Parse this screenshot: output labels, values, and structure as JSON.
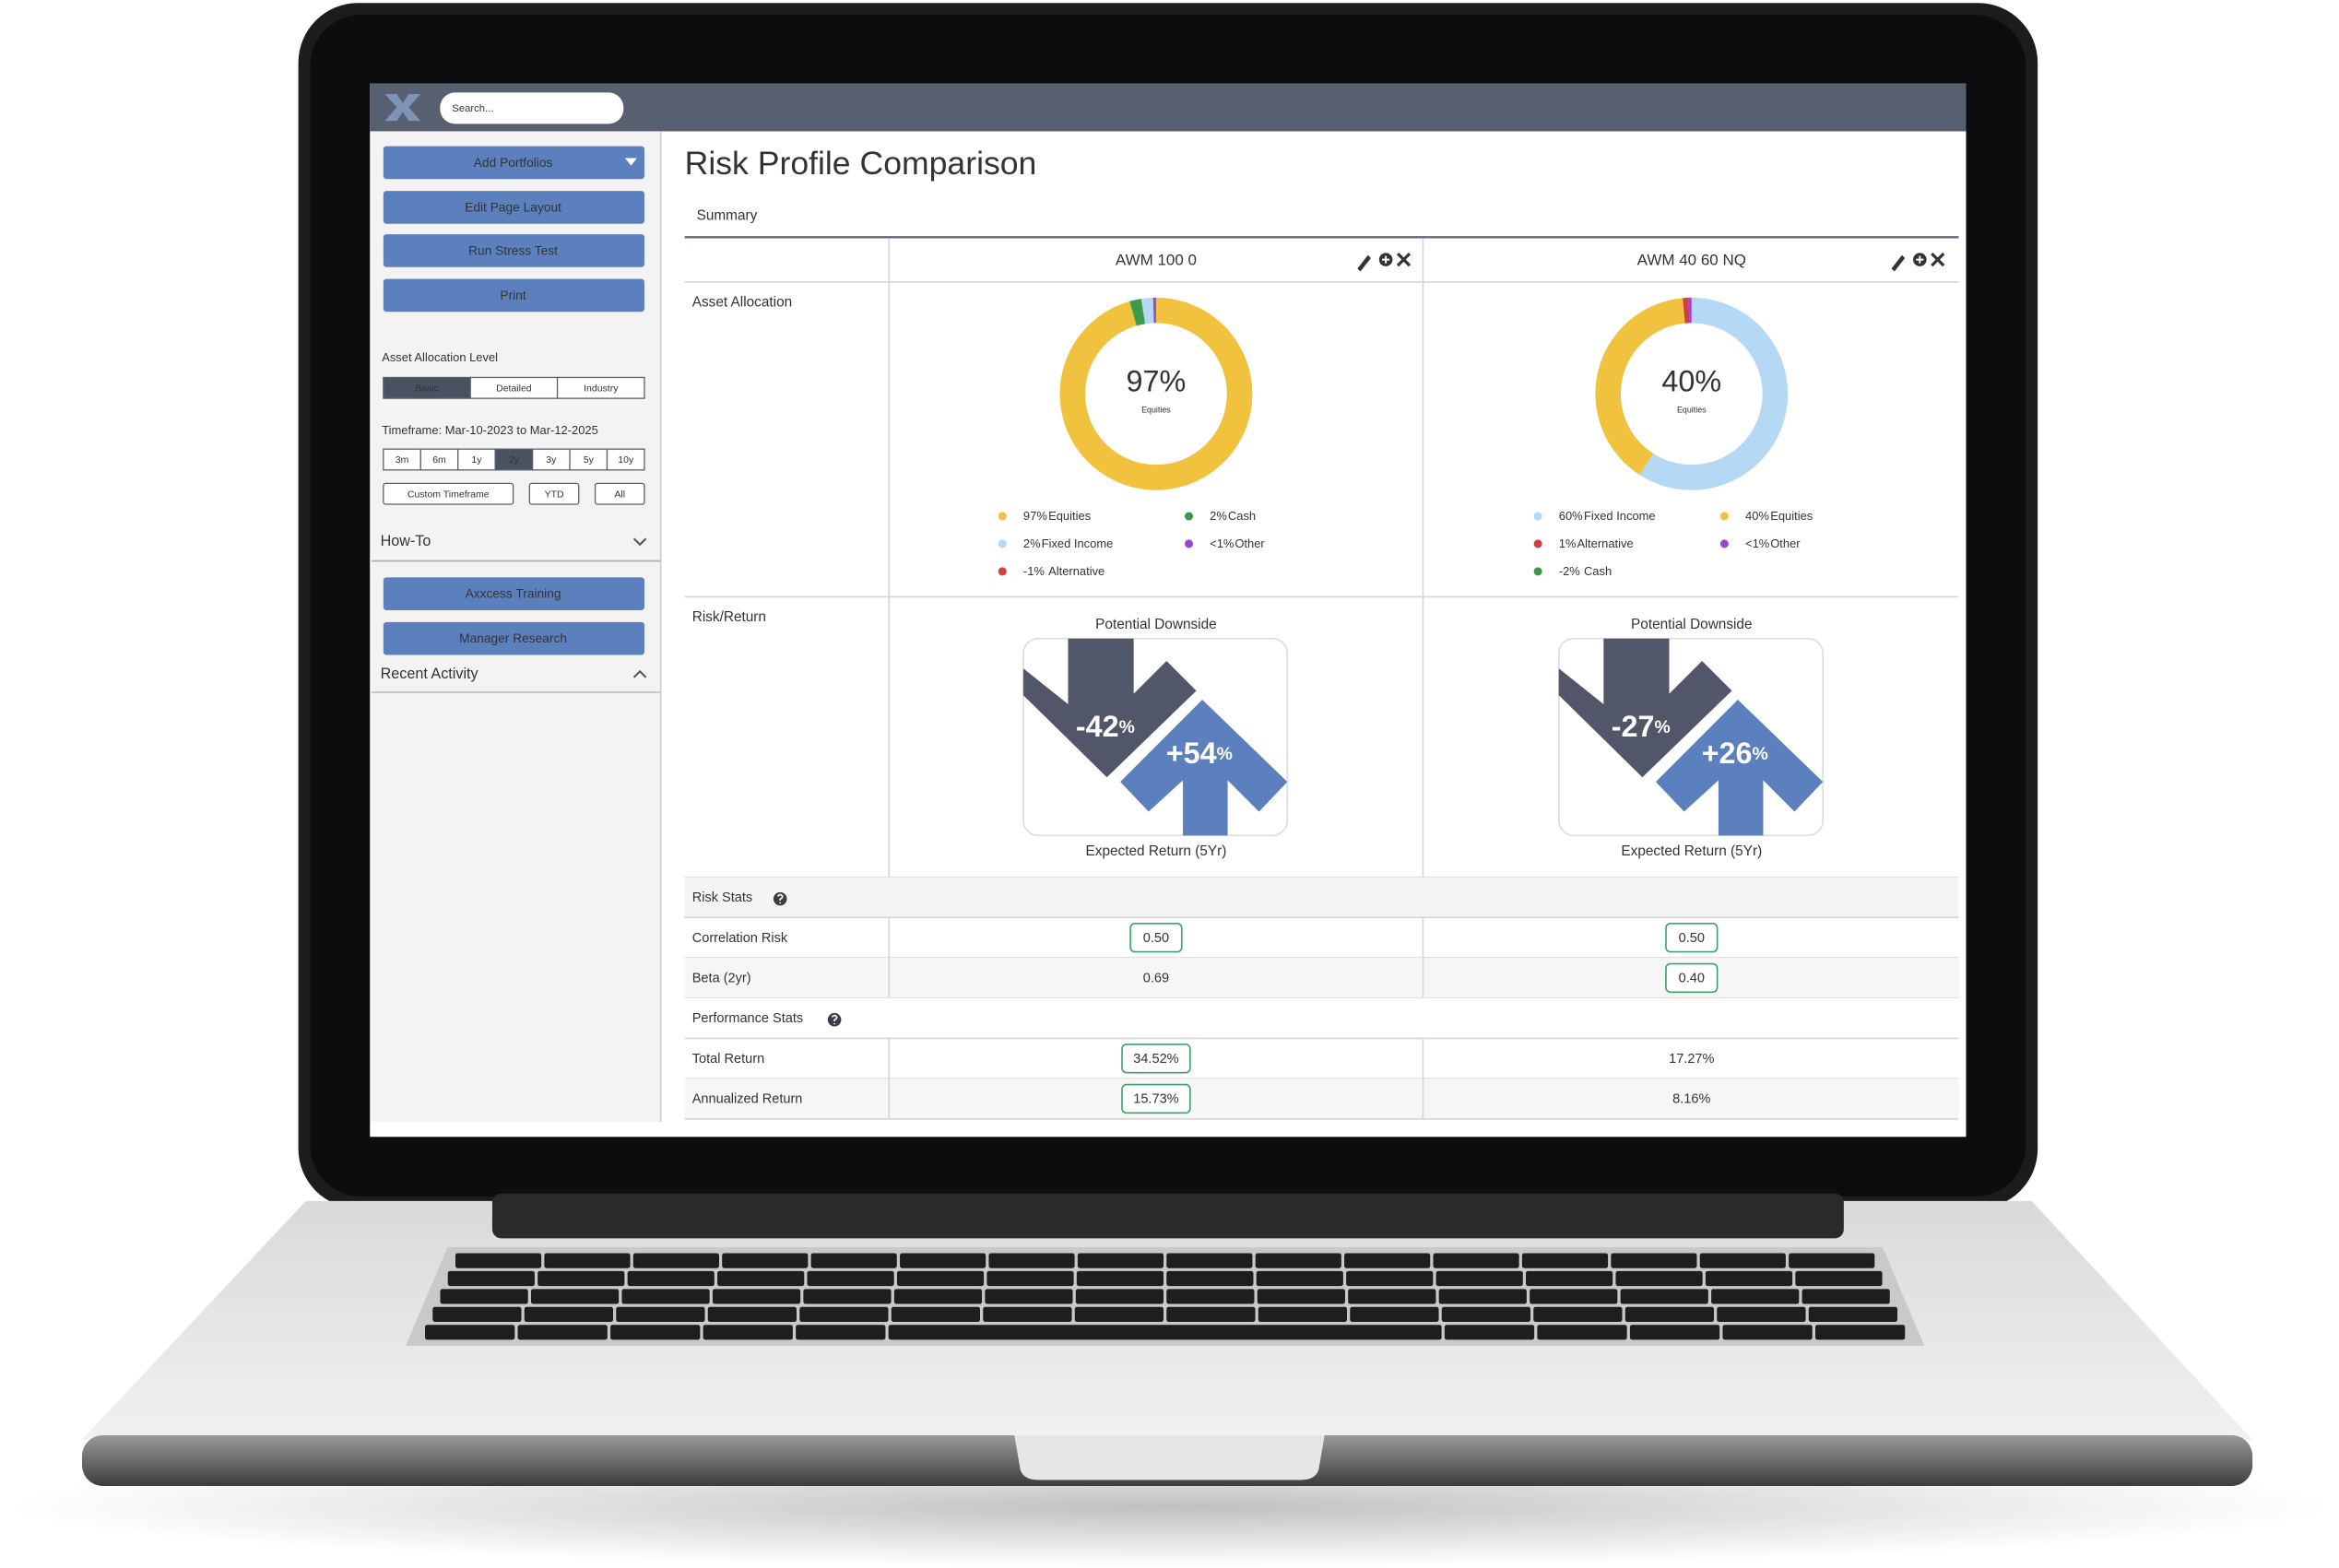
{
  "topbar": {
    "search_placeholder": "Search..."
  },
  "sidebar": {
    "buttons": [
      "Add Portfolios",
      "Edit Page Layout",
      "Run Stress Test",
      "Print"
    ],
    "allocation_level": {
      "label": "Asset Allocation Level",
      "options": [
        "Basic",
        "Detailed",
        "Industry"
      ],
      "selected": 0
    },
    "timeframe": {
      "label": "Timeframe: Mar-10-2023 to Mar-12-2025",
      "options": [
        "3m",
        "6m",
        "1y",
        "2y",
        "3y",
        "5y",
        "10y"
      ],
      "selected": 3,
      "extra": [
        "Custom Timeframe",
        "YTD",
        "All"
      ]
    },
    "how_to": {
      "title": "How-To",
      "buttons": [
        "Axxcess Training",
        "Manager Research"
      ]
    },
    "recent_activity": "Recent Activity"
  },
  "main": {
    "title": "Risk Profile Comparison",
    "tab": "Summary",
    "row_labels": {
      "asset_allocation": "Asset Allocation",
      "risk_return": "Risk/Return"
    },
    "downside_label": "Potential Downside",
    "return_label": "Expected Return (5Yr)",
    "portfolios": [
      {
        "name": "AWM 100 0",
        "center": 0,
        "allocation": [
          {
            "value": 97,
            "label": "97%",
            "name": "Equities",
            "color": "#f0c23e"
          },
          {
            "value": 2,
            "label": "2%",
            "name": "Cash",
            "color": "#3b9b4b"
          },
          {
            "value": 2,
            "label": "2%",
            "name": "Fixed Income",
            "color": "#b5d8f4"
          },
          {
            "value": 0.5,
            "label": "<1%",
            "name": "Other",
            "color": "#9b45d4"
          },
          {
            "value": -1,
            "label": "-1%",
            "name": "Alternative",
            "color": "#d23f3f"
          }
        ],
        "downside": {
          "number": "-42",
          "unit": "%"
        },
        "expected_return": {
          "number": "+54",
          "unit": "%"
        }
      },
      {
        "name": "AWM 40 60 NQ",
        "center": 1,
        "allocation": [
          {
            "value": 60,
            "label": "60%",
            "name": "Fixed Income",
            "color": "#b5d8f4"
          },
          {
            "value": 40,
            "label": "40%",
            "name": "Equities",
            "color": "#f0c23e"
          },
          {
            "value": 1,
            "label": "1%",
            "name": "Alternative",
            "color": "#d23f3f"
          },
          {
            "value": 0.5,
            "label": "<1%",
            "name": "Other",
            "color": "#9b45d4"
          },
          {
            "value": -2,
            "label": "-2%",
            "name": "Cash",
            "color": "#3b9b4b"
          }
        ],
        "downside": {
          "number": "-27",
          "unit": "%"
        },
        "expected_return": {
          "number": "+26",
          "unit": "%"
        }
      }
    ],
    "stats_sections": [
      {
        "title": "Risk Stats",
        "rows": [
          {
            "label": "Correlation Risk",
            "cells": [
              {
                "text": "0.50",
                "highlight": true
              },
              {
                "text": "0.50",
                "highlight": true
              }
            ]
          },
          {
            "label": "Beta (2yr)",
            "cells": [
              {
                "text": "0.69",
                "highlight": false
              },
              {
                "text": "0.40",
                "highlight": true
              }
            ]
          }
        ]
      },
      {
        "title": "Performance Stats",
        "rows": [
          {
            "label": "Total Return",
            "cells": [
              {
                "text": "34.52%",
                "highlight": true
              },
              {
                "text": "17.27%",
                "highlight": false
              }
            ]
          },
          {
            "label": "Annualized Return",
            "cells": [
              {
                "text": "15.73%",
                "highlight": true
              },
              {
                "text": "8.16%",
                "highlight": false
              }
            ]
          }
        ]
      }
    ]
  }
}
